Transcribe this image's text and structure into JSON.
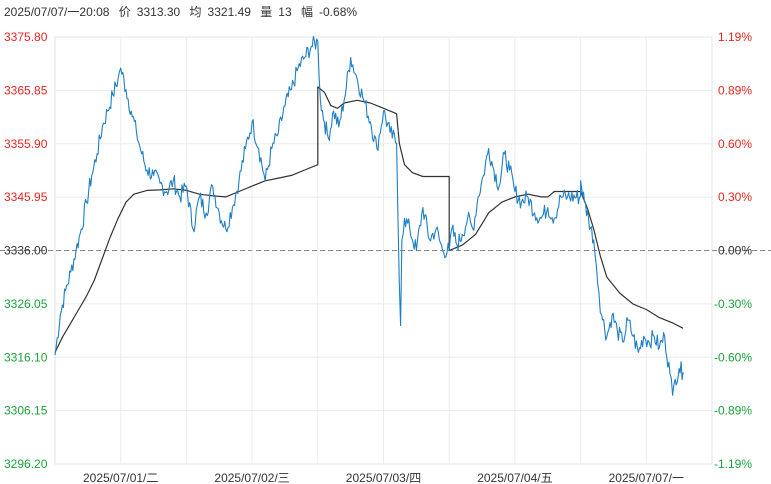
{
  "header": {
    "datetime": "2025/07/07/一20:08",
    "price_label": "价",
    "price": "3313.30",
    "avg_label": "均",
    "avg": "3321.49",
    "volume_label": "量",
    "volume": "13",
    "change_label": "幅",
    "change": "-0.68%"
  },
  "colors": {
    "up": "#e8251f",
    "down": "#1aa33a",
    "neutral": "#333333",
    "price_line": "#1e7fc3",
    "avg_line": "#333333",
    "grid": "#ececec"
  },
  "chart_data": {
    "type": "line",
    "base_price": 3336.0,
    "ylim": [
      3296.2,
      3375.8
    ],
    "y_ticks": [
      "3375.80",
      "3365.85",
      "3355.90",
      "3345.95",
      "3336.00",
      "3326.05",
      "3316.10",
      "3306.15",
      "3296.20"
    ],
    "pct_ticks": [
      "1.19%",
      "0.89%",
      "0.60%",
      "0.30%",
      "0.00%",
      "-0.30%",
      "-0.60%",
      "-0.89%",
      "-1.19%"
    ],
    "x_ticks": [
      "2025/07/01/二",
      "2025/07/02/三",
      "2025/07/03/四",
      "2025/07/04/五",
      "2025/07/07/一"
    ],
    "series": [
      {
        "key": "price",
        "points": [
          [
            0.0,
            3316.5
          ],
          [
            0.04,
            3324.0
          ],
          [
            0.08,
            3328.5
          ],
          [
            0.12,
            3332.0
          ],
          [
            0.16,
            3336.0
          ],
          [
            0.2,
            3340.0
          ],
          [
            0.24,
            3345.0
          ],
          [
            0.28,
            3350.0
          ],
          [
            0.32,
            3354.0
          ],
          [
            0.36,
            3359.0
          ],
          [
            0.4,
            3362.0
          ],
          [
            0.44,
            3365.0
          ],
          [
            0.48,
            3368.0
          ],
          [
            0.5,
            3370.0
          ],
          [
            0.54,
            3366.0
          ],
          [
            0.58,
            3362.0
          ],
          [
            0.62,
            3358.0
          ],
          [
            0.66,
            3354.0
          ],
          [
            0.7,
            3351.0
          ],
          [
            0.75,
            3350.0
          ],
          [
            0.8,
            3348.5
          ],
          [
            0.85,
            3347.0
          ],
          [
            0.9,
            3349.0
          ],
          [
            0.95,
            3346.0
          ],
          [
            1.0,
            3348.0
          ],
          [
            1.0,
            3348.0
          ],
          [
            1.05,
            3340.0
          ],
          [
            1.1,
            3346.0
          ],
          [
            1.15,
            3343.0
          ],
          [
            1.2,
            3348.0
          ],
          [
            1.25,
            3343.0
          ],
          [
            1.3,
            3340.0
          ],
          [
            1.35,
            3344.0
          ],
          [
            1.4,
            3349.0
          ],
          [
            1.45,
            3355.0
          ],
          [
            1.5,
            3360.0
          ],
          [
            1.55,
            3355.0
          ],
          [
            1.6,
            3349.0
          ],
          [
            1.65,
            3355.0
          ],
          [
            1.7,
            3358.0
          ],
          [
            1.75,
            3363.0
          ],
          [
            1.8,
            3366.0
          ],
          [
            1.85,
            3370.0
          ],
          [
            1.9,
            3372.0
          ],
          [
            1.95,
            3374.0
          ],
          [
            2.0,
            3375.0
          ],
          [
            2.02,
            3364.0
          ],
          [
            2.05,
            3360.0
          ],
          [
            2.08,
            3357.0
          ],
          [
            2.12,
            3362.0
          ],
          [
            2.16,
            3359.0
          ],
          [
            2.2,
            3364.0
          ],
          [
            2.25,
            3372.0
          ],
          [
            2.3,
            3368.0
          ],
          [
            2.35,
            3364.0
          ],
          [
            2.4,
            3360.0
          ],
          [
            2.45,
            3355.0
          ],
          [
            2.5,
            3362.0
          ],
          [
            2.55,
            3358.0
          ],
          [
            2.6,
            3356.0
          ],
          [
            2.62,
            3330.0
          ],
          [
            2.63,
            3322.0
          ],
          [
            2.64,
            3338.0
          ],
          [
            2.66,
            3342.0
          ],
          [
            2.7,
            3340.0
          ],
          [
            2.75,
            3336.0
          ],
          [
            2.8,
            3344.0
          ],
          [
            2.85,
            3338.0
          ],
          [
            2.9,
            3340.0
          ],
          [
            2.95,
            3336.0
          ],
          [
            3.0,
            3336.0
          ],
          [
            3.0,
            3336.0
          ],
          [
            3.02,
            3340.0
          ],
          [
            3.06,
            3337.0
          ],
          [
            3.1,
            3339.0
          ],
          [
            3.14,
            3342.0
          ],
          [
            3.18,
            3340.0
          ],
          [
            3.22,
            3346.0
          ],
          [
            3.26,
            3350.0
          ],
          [
            3.3,
            3355.0
          ],
          [
            3.34,
            3351.0
          ],
          [
            3.38,
            3348.0
          ],
          [
            3.42,
            3354.0
          ],
          [
            3.46,
            3351.0
          ],
          [
            3.5,
            3347.0
          ],
          [
            3.55,
            3345.0
          ],
          [
            3.6,
            3346.0
          ],
          [
            3.65,
            3343.0
          ],
          [
            3.7,
            3342.0
          ],
          [
            3.75,
            3344.0
          ],
          [
            3.8,
            3342.0
          ],
          [
            3.85,
            3346.0
          ],
          [
            3.9,
            3346.0
          ],
          [
            4.0,
            3346.0
          ],
          [
            4.0,
            3349.0
          ],
          [
            4.03,
            3345.0
          ],
          [
            4.06,
            3342.0
          ],
          [
            4.1,
            3338.0
          ],
          [
            4.12,
            3333.0
          ],
          [
            4.14,
            3328.0
          ],
          [
            4.16,
            3324.0
          ],
          [
            4.2,
            3320.0
          ],
          [
            4.24,
            3324.0
          ],
          [
            4.28,
            3321.0
          ],
          [
            4.32,
            3319.0
          ],
          [
            4.36,
            3323.0
          ],
          [
            4.4,
            3320.0
          ],
          [
            4.44,
            3317.0
          ],
          [
            4.48,
            3320.0
          ],
          [
            4.52,
            3319.0
          ],
          [
            4.56,
            3320.0
          ],
          [
            4.6,
            3318.0
          ],
          [
            4.64,
            3320.0
          ],
          [
            4.68,
            3313.0
          ],
          [
            4.7,
            3309.0
          ],
          [
            4.72,
            3312.0
          ],
          [
            4.75,
            3314.0
          ],
          [
            4.78,
            3313.3
          ]
        ]
      },
      {
        "key": "average",
        "points": [
          [
            0.0,
            3317.0
          ],
          [
            0.06,
            3320.0
          ],
          [
            0.12,
            3322.5
          ],
          [
            0.18,
            3325.0
          ],
          [
            0.24,
            3327.5
          ],
          [
            0.3,
            3330.5
          ],
          [
            0.36,
            3334.5
          ],
          [
            0.42,
            3338.5
          ],
          [
            0.48,
            3342.0
          ],
          [
            0.54,
            3345.0
          ],
          [
            0.6,
            3346.5
          ],
          [
            0.7,
            3347.2
          ],
          [
            0.8,
            3347.3
          ],
          [
            0.9,
            3347.5
          ],
          [
            1.0,
            3347.2
          ],
          [
            1.0,
            3347.2
          ],
          [
            1.1,
            3346.5
          ],
          [
            1.2,
            3346.2
          ],
          [
            1.3,
            3346.0
          ],
          [
            1.4,
            3347.0
          ],
          [
            1.5,
            3348.0
          ],
          [
            1.6,
            3349.0
          ],
          [
            1.7,
            3349.5
          ],
          [
            1.8,
            3350.0
          ],
          [
            1.9,
            3351.0
          ],
          [
            2.0,
            3352.0
          ],
          [
            2.0,
            3366.5
          ],
          [
            2.05,
            3365.5
          ],
          [
            2.1,
            3363.0
          ],
          [
            2.15,
            3362.5
          ],
          [
            2.2,
            3363.5
          ],
          [
            2.3,
            3364.0
          ],
          [
            2.4,
            3363.5
          ],
          [
            2.5,
            3362.5
          ],
          [
            2.6,
            3361.5
          ],
          [
            2.62,
            3356.0
          ],
          [
            2.66,
            3352.0
          ],
          [
            2.72,
            3350.5
          ],
          [
            2.8,
            3349.8
          ],
          [
            2.9,
            3349.8
          ],
          [
            3.0,
            3349.8
          ],
          [
            3.0,
            3336.0
          ],
          [
            3.05,
            3336.5
          ],
          [
            3.1,
            3337.0
          ],
          [
            3.15,
            3338.0
          ],
          [
            3.2,
            3339.0
          ],
          [
            3.25,
            3341.0
          ],
          [
            3.3,
            3343.0
          ],
          [
            3.4,
            3345.0
          ],
          [
            3.5,
            3346.0
          ],
          [
            3.6,
            3346.5
          ],
          [
            3.7,
            3346.0
          ],
          [
            3.75,
            3346.0
          ],
          [
            3.8,
            3347.0
          ],
          [
            3.9,
            3347.0
          ],
          [
            4.0,
            3347.0
          ],
          [
            4.0,
            3347.0
          ],
          [
            4.05,
            3344.0
          ],
          [
            4.1,
            3340.0
          ],
          [
            4.15,
            3335.0
          ],
          [
            4.2,
            3331.0
          ],
          [
            4.3,
            3328.0
          ],
          [
            4.4,
            3326.0
          ],
          [
            4.5,
            3325.0
          ],
          [
            4.6,
            3323.5
          ],
          [
            4.7,
            3322.5
          ],
          [
            4.78,
            3321.5
          ]
        ]
      }
    ]
  }
}
